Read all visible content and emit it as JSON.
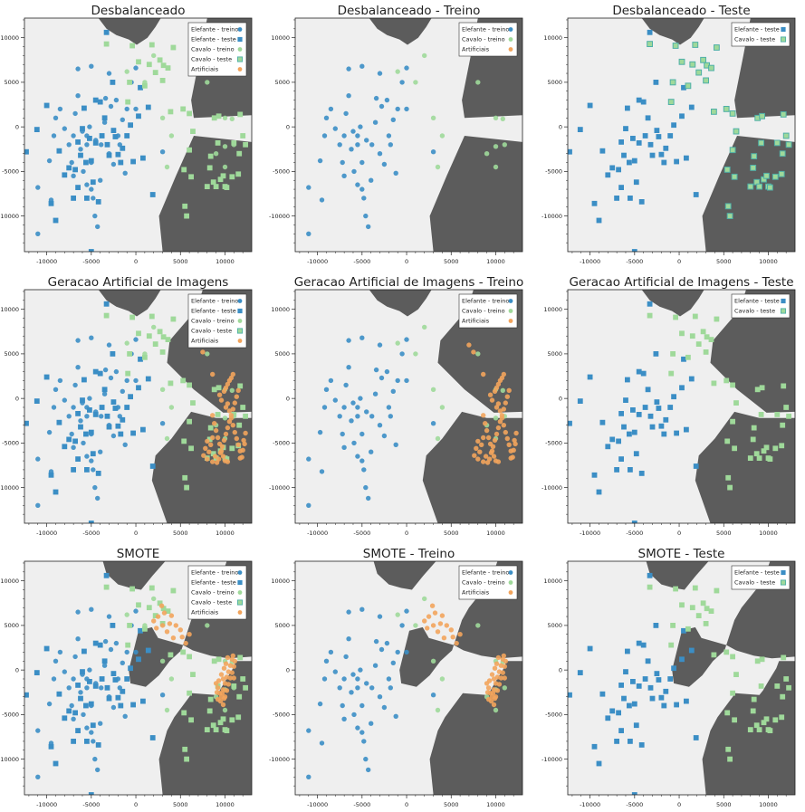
{
  "colors": {
    "elefante": "#3b8ec5",
    "cavalo": "#9fd99a",
    "cavalo_edge": "#4fb0a8",
    "artificial": "#f2a45c",
    "region_dark": "#5c5c5c",
    "region_light": "#efefef"
  },
  "axis": {
    "xlim": [
      -12500,
      13000
    ],
    "ylim": [
      -14000,
      12200
    ],
    "xticks": [
      -10000,
      -5000,
      0,
      5000,
      10000
    ],
    "yticks": [
      -10000,
      -5000,
      0,
      5000,
      10000
    ]
  },
  "legend_labels": {
    "elefante_treino": "Elefante - treino",
    "elefante_teste": "Elefante - teste",
    "cavalo_treino": "Cavalo - treino",
    "cavalo_teste": "Cavalo - teste",
    "artificiais": "Artificiais"
  },
  "chart_data": [
    {
      "type": "scatter",
      "title": "Desbalanceado",
      "legend": [
        "elefante_treino",
        "elefante_teste",
        "cavalo_treino",
        "cavalo_teste",
        "artificiais"
      ],
      "show": [
        "et",
        "es",
        "ct",
        "cs"
      ],
      "boundary": "base",
      "artificial": "none"
    },
    {
      "type": "scatter",
      "title": "Desbalanceado - Treino",
      "legend": [
        "elefante_treino",
        "cavalo_treino",
        "artificiais"
      ],
      "show": [
        "et",
        "ct"
      ],
      "boundary": "base",
      "artificial": "none"
    },
    {
      "type": "scatter",
      "title": "Desbalanceado - Teste",
      "legend": [
        "elefante_teste",
        "cavalo_teste"
      ],
      "show": [
        "es",
        "cs"
      ],
      "boundary": "base",
      "artificial": "none"
    },
    {
      "type": "scatter",
      "title": "Geracao Artificial de Imagens",
      "legend": [
        "elefante_treino",
        "elefante_teste",
        "cavalo_treino",
        "cavalo_teste",
        "artificiais"
      ],
      "show": [
        "et",
        "es",
        "ct",
        "cs",
        "ar"
      ],
      "boundary": "gen",
      "artificial": "gen"
    },
    {
      "type": "scatter",
      "title": "Geracao Artificial de Imagens - Treino",
      "legend": [
        "elefante_treino",
        "cavalo_treino",
        "artificiais"
      ],
      "show": [
        "et",
        "ct",
        "ar"
      ],
      "boundary": "gen",
      "artificial": "gen"
    },
    {
      "type": "scatter",
      "title": "Geracao Artificial de Imagens - Teste",
      "legend": [
        "elefante_teste",
        "cavalo_teste"
      ],
      "show": [
        "es",
        "cs"
      ],
      "boundary": "gen",
      "artificial": "gen"
    },
    {
      "type": "scatter",
      "title": "SMOTE",
      "legend": [
        "elefante_treino",
        "elefante_teste",
        "cavalo_treino",
        "cavalo_teste",
        "artificiais"
      ],
      "show": [
        "et",
        "es",
        "ct",
        "cs",
        "ar"
      ],
      "boundary": "smote",
      "artificial": "smote"
    },
    {
      "type": "scatter",
      "title": "SMOTE - Treino",
      "legend": [
        "elefante_treino",
        "cavalo_treino",
        "artificiais"
      ],
      "show": [
        "et",
        "ct",
        "ar"
      ],
      "boundary": "smote",
      "artificial": "smote"
    },
    {
      "type": "scatter",
      "title": "SMOTE - Teste",
      "legend": [
        "elefante_teste",
        "cavalo_teste"
      ],
      "show": [
        "es",
        "cs"
      ],
      "boundary": "smote",
      "artificial": "smote"
    }
  ],
  "points": {
    "elefante_treino": [
      [
        -11000,
        -12000
      ],
      [
        -11000,
        -6800
      ],
      [
        -9500,
        -8200
      ],
      [
        -9700,
        -3800
      ],
      [
        -9200,
        -1000
      ],
      [
        -9000,
        1000
      ],
      [
        -8500,
        2000
      ],
      [
        -8000,
        -200
      ],
      [
        -7500,
        -2000
      ],
      [
        -7200,
        -4000
      ],
      [
        -7000,
        -5500
      ],
      [
        -7000,
        -1000
      ],
      [
        -6800,
        1500
      ],
      [
        -6500,
        3500
      ],
      [
        -6500,
        6500
      ],
      [
        -6200,
        -2500
      ],
      [
        -6000,
        -500
      ],
      [
        -5900,
        -5000
      ],
      [
        -5500,
        -6500
      ],
      [
        -5500,
        -2000
      ],
      [
        -5500,
        -1000
      ],
      [
        -5200,
        0
      ],
      [
        -5000,
        -7000
      ],
      [
        -5000,
        -4000
      ],
      [
        -5000,
        6800
      ],
      [
        -4800,
        -8000
      ],
      [
        -4600,
        -10000
      ],
      [
        -4500,
        -1500
      ],
      [
        -4300,
        -11200
      ],
      [
        -4000,
        -6000
      ],
      [
        -3900,
        -2000
      ],
      [
        -3500,
        500
      ],
      [
        -3400,
        3200
      ],
      [
        -3000,
        -3000
      ],
      [
        -3000,
        6000
      ],
      [
        -2800,
        2300
      ],
      [
        -2500,
        -4200
      ],
      [
        -2200,
        3000
      ],
      [
        -2000,
        -1000
      ],
      [
        -1800,
        -2000
      ],
      [
        -1500,
        800
      ],
      [
        -1200,
        -5200
      ],
      [
        -1000,
        2000
      ],
      [
        -500,
        5000
      ],
      [
        0,
        2000
      ],
      [
        0,
        6600
      ],
      [
        3000,
        -2800
      ]
    ],
    "elefante_teste": [
      [
        -12300,
        -2800
      ],
      [
        -11100,
        -300
      ],
      [
        -10000,
        2400
      ],
      [
        -9500,
        -8600
      ],
      [
        -9000,
        -10500
      ],
      [
        -8600,
        -2700
      ],
      [
        -8000,
        -5400
      ],
      [
        -7500,
        -4600
      ],
      [
        -7000,
        -8000
      ],
      [
        -6800,
        -4800
      ],
      [
        -6500,
        -6800
      ],
      [
        -6500,
        -1700
      ],
      [
        -6200,
        -3200
      ],
      [
        -6000,
        -200
      ],
      [
        -5800,
        2100
      ],
      [
        -5600,
        -4000
      ],
      [
        -5500,
        -8000
      ],
      [
        -5200,
        -1300
      ],
      [
        -5000,
        -3800
      ],
      [
        -5000,
        -14000
      ],
      [
        -4800,
        -6200
      ],
      [
        -4500,
        -1800
      ],
      [
        -4500,
        3000
      ],
      [
        -4200,
        -8400
      ],
      [
        -4000,
        2800
      ],
      [
        -3800,
        -1000
      ],
      [
        -3500,
        1000
      ],
      [
        -3200,
        -2000
      ],
      [
        -3000,
        -3200
      ],
      [
        -2500,
        -400
      ],
      [
        -2300,
        -1100
      ],
      [
        -2000,
        -3100
      ],
      [
        -1700,
        -4000
      ],
      [
        -1500,
        -2400
      ],
      [
        -1000,
        -1000
      ],
      [
        -600,
        200
      ],
      [
        -300,
        -3900
      ],
      [
        300,
        1200
      ],
      [
        500,
        4400
      ],
      [
        800,
        -3500
      ],
      [
        1400,
        2200
      ],
      [
        1900,
        -7600
      ],
      [
        -2600,
        5000
      ],
      [
        -3300,
        10600
      ]
    ],
    "cavalo_treino": [
      [
        -1000,
        6200
      ],
      [
        1000,
        5000
      ],
      [
        2000,
        8000
      ],
      [
        3000,
        1000
      ],
      [
        3500,
        -4500
      ],
      [
        4000,
        -1000
      ],
      [
        8000,
        5000
      ],
      [
        9000,
        -3000
      ],
      [
        10000,
        -2200
      ],
      [
        10000,
        -4500
      ],
      [
        10000,
        1000
      ],
      [
        10800,
        900
      ],
      [
        11000,
        -2000
      ]
    ],
    "cavalo_teste": [
      [
        -3300,
        9300
      ],
      [
        -900,
        2800
      ],
      [
        -700,
        5000
      ],
      [
        -400,
        9100
      ],
      [
        300,
        7300
      ],
      [
        1000,
        4600
      ],
      [
        1500,
        7000
      ],
      [
        1800,
        9200
      ],
      [
        2200,
        6100
      ],
      [
        2700,
        7500
      ],
      [
        3000,
        5200
      ],
      [
        3100,
        6900
      ],
      [
        3600,
        6600
      ],
      [
        3900,
        1700
      ],
      [
        5400,
        -4800
      ],
      [
        5500,
        -8900
      ],
      [
        5700,
        -10000
      ],
      [
        6000,
        -2600
      ],
      [
        6200,
        -5600
      ],
      [
        6400,
        -500
      ],
      [
        8000,
        -6700
      ],
      [
        8300,
        -4600
      ],
      [
        8400,
        -3300
      ],
      [
        8700,
        -6200
      ],
      [
        9000,
        -6700
      ],
      [
        9200,
        -1800
      ],
      [
        9500,
        -5900
      ],
      [
        9800,
        -5500
      ],
      [
        10000,
        -6700
      ],
      [
        10200,
        -6800
      ],
      [
        10800,
        -5600
      ],
      [
        11500,
        -5300
      ],
      [
        11600,
        -3000
      ],
      [
        11700,
        1400
      ],
      [
        12000,
        -1000
      ],
      [
        12300,
        -2000
      ],
      [
        8800,
        1000
      ],
      [
        9300,
        1200
      ],
      [
        4200,
        8900
      ],
      [
        5300,
        2000
      ],
      [
        6000,
        1500
      ],
      [
        11000,
        -1800
      ]
    ],
    "artificial_gen": [
      [
        8600,
        2700
      ],
      [
        8600,
        -1900
      ],
      [
        8800,
        -2800
      ],
      [
        9000,
        -3600
      ],
      [
        9200,
        -4400
      ],
      [
        9400,
        -5100
      ],
      [
        9600,
        -5900
      ],
      [
        9800,
        -6500
      ],
      [
        10000,
        -7000
      ],
      [
        10300,
        -7100
      ],
      [
        10500,
        -1400
      ],
      [
        10700,
        -2200
      ],
      [
        10900,
        -3000
      ],
      [
        11100,
        -3800
      ],
      [
        11300,
        -4500
      ],
      [
        11500,
        -5200
      ],
      [
        11700,
        -5900
      ],
      [
        11900,
        -6600
      ],
      [
        12100,
        -4700
      ],
      [
        12300,
        -3900
      ],
      [
        9900,
        800
      ],
      [
        10100,
        1200
      ],
      [
        10300,
        1600
      ],
      [
        10500,
        2000
      ],
      [
        10700,
        2300
      ],
      [
        10900,
        2700
      ],
      [
        10100,
        -1000
      ],
      [
        10300,
        -600
      ],
      [
        8000,
        -6800
      ],
      [
        8200,
        -6000
      ],
      [
        8400,
        -5200
      ],
      [
        8600,
        -4400
      ],
      [
        8000,
        -4800
      ],
      [
        7800,
        -5600
      ],
      [
        7600,
        -6400
      ],
      [
        9300,
        -6800
      ],
      [
        9500,
        -6100
      ],
      [
        9700,
        -5400
      ],
      [
        9900,
        -4700
      ],
      [
        10100,
        -4000
      ],
      [
        10300,
        -3300
      ],
      [
        10500,
        -2600
      ],
      [
        10700,
        -1900
      ],
      [
        10900,
        -1200
      ],
      [
        11100,
        -500
      ],
      [
        11300,
        200
      ],
      [
        11500,
        900
      ],
      [
        11700,
        -6700
      ],
      [
        12000,
        -5800
      ],
      [
        12200,
        -5100
      ],
      [
        9400,
        400
      ],
      [
        9600,
        -200
      ],
      [
        7000,
        6000
      ],
      [
        7500,
        5200
      ],
      [
        8600,
        -7100
      ],
      [
        8900,
        -6500
      ],
      [
        9100,
        -7200
      ]
    ],
    "artificial_smote": [
      [
        2000,
        5500
      ],
      [
        2500,
        6000
      ],
      [
        3000,
        5000
      ],
      [
        3500,
        4300
      ],
      [
        3800,
        5200
      ],
      [
        4200,
        3600
      ],
      [
        4500,
        5000
      ],
      [
        5000,
        4500
      ],
      [
        5200,
        3700
      ],
      [
        5600,
        3000
      ],
      [
        6000,
        4000
      ],
      [
        2900,
        7200
      ],
      [
        3200,
        6400
      ],
      [
        4000,
        6100
      ],
      [
        2300,
        4700
      ],
      [
        9000,
        -1500
      ],
      [
        9200,
        -2000
      ],
      [
        9400,
        -2600
      ],
      [
        9600,
        -3000
      ],
      [
        9800,
        -2200
      ],
      [
        10000,
        -1500
      ],
      [
        10200,
        -800
      ],
      [
        10400,
        -200
      ],
      [
        10600,
        500
      ],
      [
        10800,
        1200
      ],
      [
        9200,
        -3300
      ],
      [
        9500,
        -3500
      ],
      [
        9800,
        -3900
      ],
      [
        10000,
        -3000
      ],
      [
        10200,
        -2300
      ],
      [
        10400,
        -1600
      ],
      [
        10600,
        -900
      ],
      [
        10800,
        -300
      ],
      [
        11000,
        400
      ],
      [
        11100,
        1000
      ],
      [
        9600,
        -500
      ],
      [
        9800,
        -1000
      ],
      [
        9900,
        200
      ],
      [
        10100,
        700
      ],
      [
        10300,
        1400
      ],
      [
        9100,
        -2500
      ],
      [
        9300,
        -1200
      ],
      [
        9700,
        -2600
      ],
      [
        10900,
        1600
      ],
      [
        11000,
        -900
      ],
      [
        9900,
        -3200
      ]
    ]
  }
}
